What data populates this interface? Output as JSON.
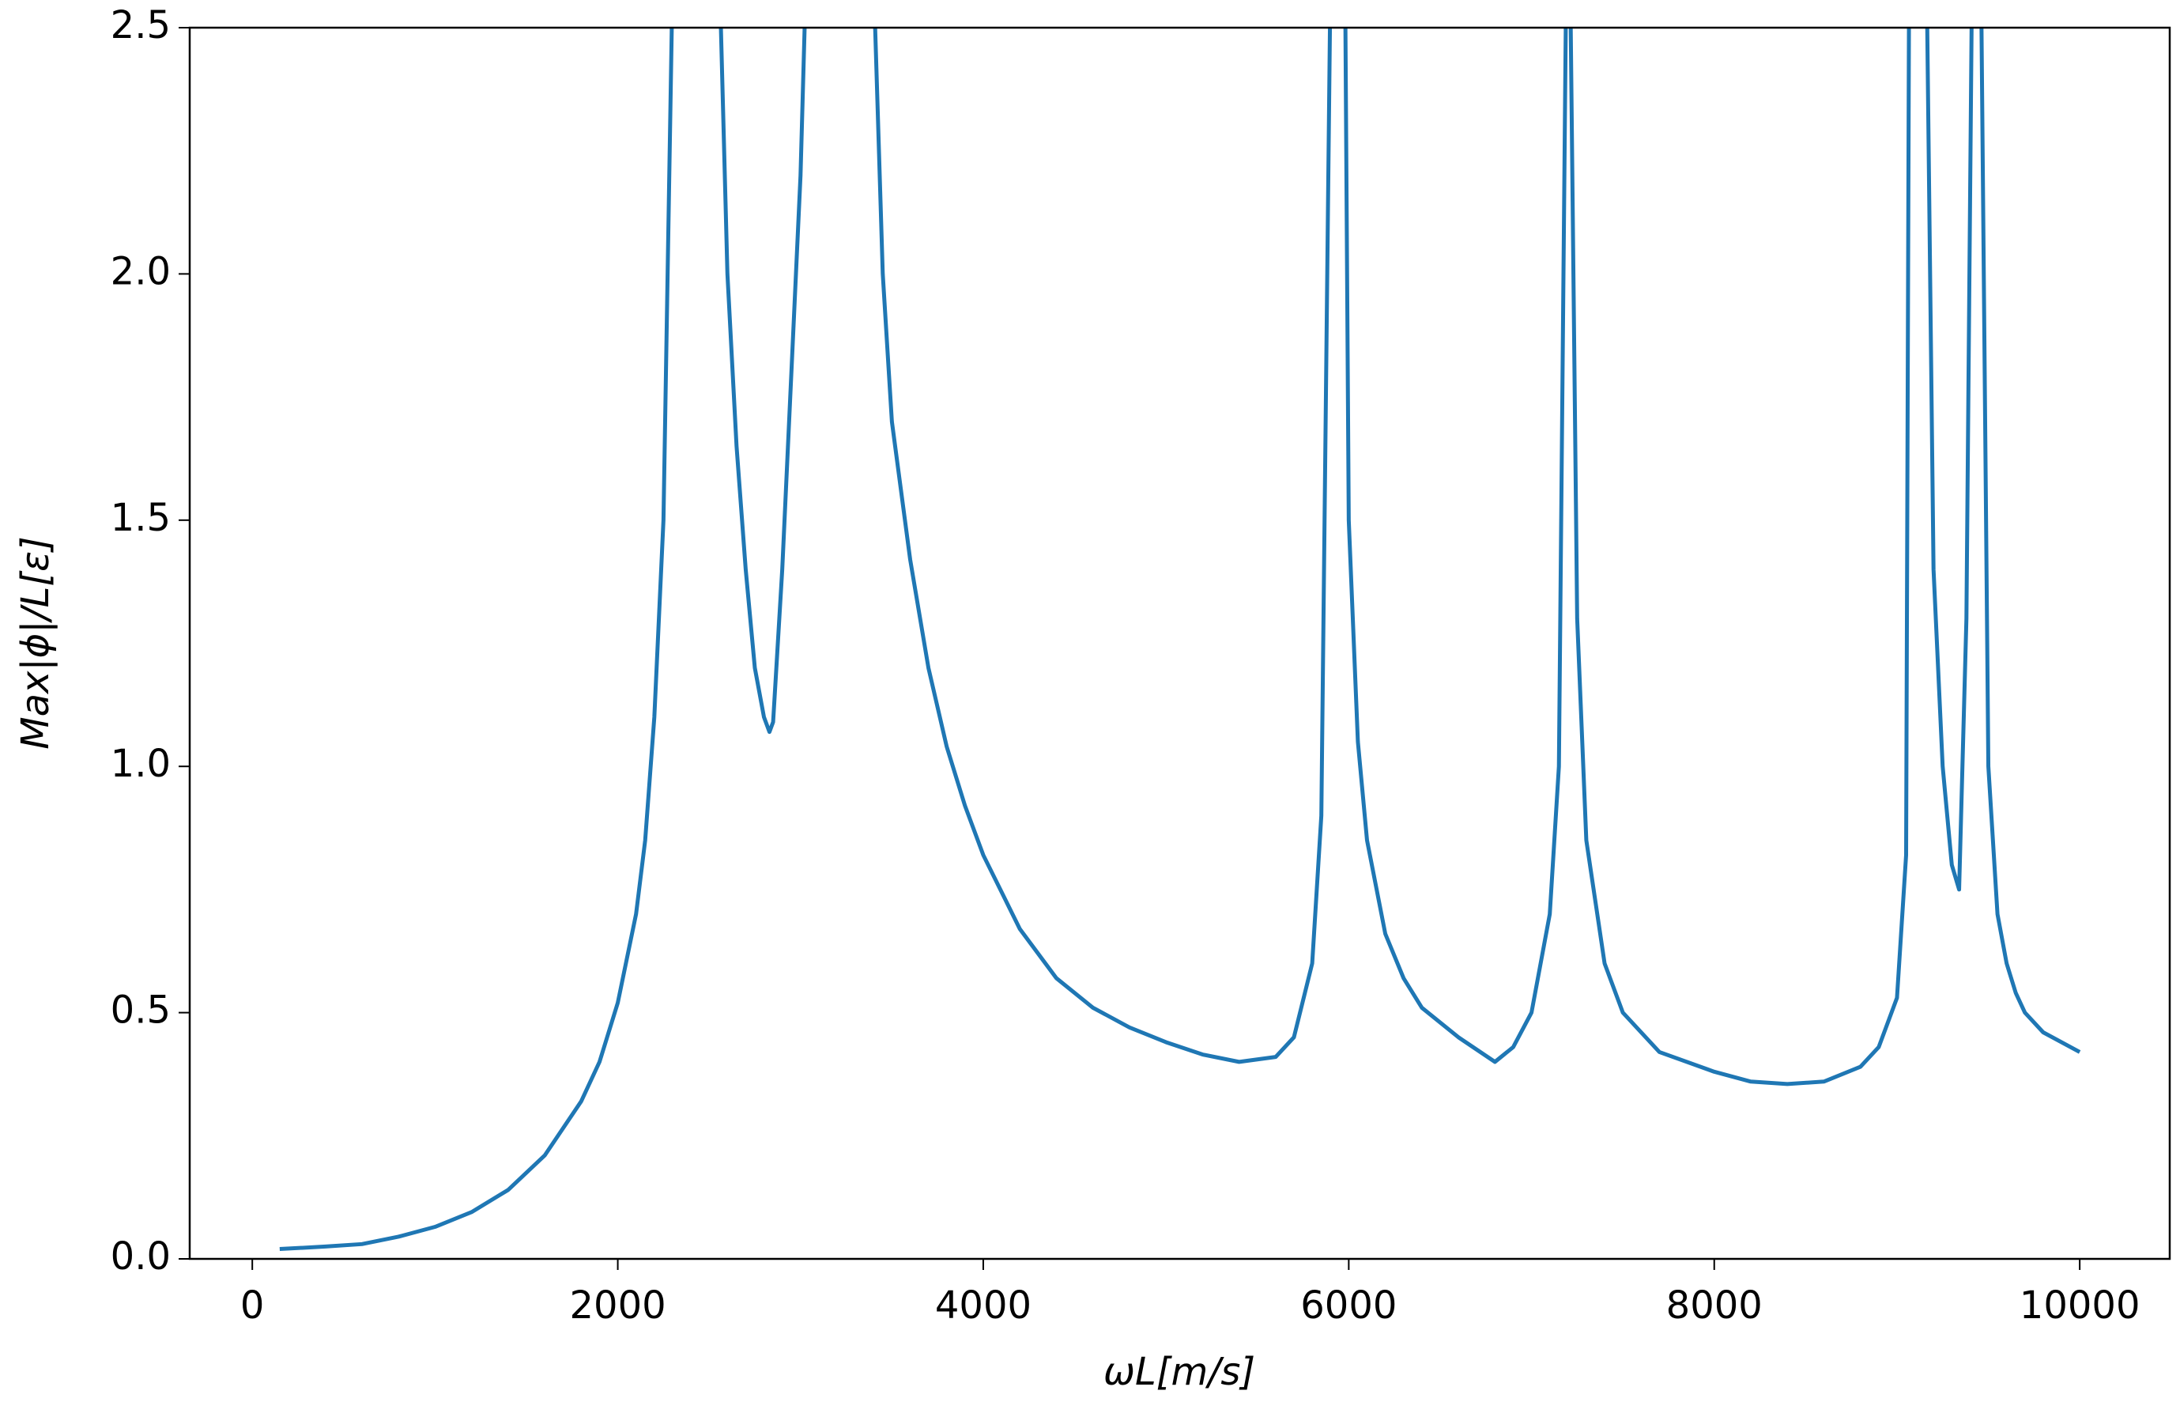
{
  "chart_data": {
    "type": "line",
    "x_label": "ωL[m/s]",
    "y_label": "Max|ϕ|/L[ε]",
    "x": [
      150,
      400,
      600,
      800,
      1000,
      1200,
      1400,
      1600,
      1800,
      1900,
      2000,
      2100,
      2150,
      2200,
      2250,
      2300,
      2350,
      2500,
      2550,
      2600,
      2650,
      2700,
      2750,
      2800,
      2830,
      2850,
      2900,
      2950,
      3000,
      3030,
      3100,
      3350,
      3400,
      3450,
      3500,
      3600,
      3700,
      3800,
      3900,
      4000,
      4200,
      4400,
      4600,
      4800,
      5000,
      5200,
      5400,
      5600,
      5700,
      5800,
      5850,
      5900,
      5950,
      5980,
      6000,
      6050,
      6100,
      6200,
      6300,
      6400,
      6600,
      6800,
      6900,
      7000,
      7100,
      7150,
      7200,
      7250,
      7300,
      7400,
      7500,
      7700,
      8000,
      8200,
      8400,
      8600,
      8800,
      8900,
      9000,
      9050,
      9070,
      9150,
      9200,
      9250,
      9300,
      9340,
      9380,
      9420,
      9450,
      9500,
      9550,
      9600,
      9650,
      9700,
      9800,
      10000
    ],
    "series": [
      {
        "color": "#1f77b4",
        "values": [
          0.02,
          0.025,
          0.03,
          0.045,
          0.065,
          0.095,
          0.14,
          0.21,
          0.32,
          0.4,
          0.52,
          0.7,
          0.85,
          1.1,
          1.5,
          2.6,
          4,
          4,
          2.7,
          2.0,
          1.65,
          1.4,
          1.2,
          1.1,
          1.07,
          1.09,
          1.4,
          1.8,
          2.2,
          2.6,
          4,
          4,
          2.6,
          2.0,
          1.7,
          1.42,
          1.2,
          1.04,
          0.92,
          0.82,
          0.67,
          0.57,
          0.51,
          0.47,
          0.44,
          0.415,
          0.4,
          0.41,
          0.45,
          0.6,
          0.9,
          2.6,
          4,
          2.6,
          1.5,
          1.05,
          0.85,
          0.66,
          0.57,
          0.51,
          0.45,
          0.4,
          0.43,
          0.5,
          0.7,
          1.0,
          3,
          1.3,
          0.85,
          0.6,
          0.5,
          0.42,
          0.38,
          0.36,
          0.355,
          0.36,
          0.39,
          0.43,
          0.53,
          0.82,
          3,
          3,
          1.4,
          1.0,
          0.8,
          0.75,
          1.3,
          3,
          3,
          1.0,
          0.7,
          0.6,
          0.54,
          0.5,
          0.46,
          0.42
        ]
      }
    ],
    "xlim": [
      -342.5,
      10492.5
    ],
    "xticks": [
      0,
      2000,
      4000,
      6000,
      8000,
      10000
    ],
    "ylim": [
      0,
      2.5
    ],
    "yticks": [
      {
        "value": 0,
        "label": "0.0"
      },
      {
        "value": 0.5,
        "label": "0.5"
      },
      {
        "value": 1,
        "label": "1.0"
      },
      {
        "value": 1.5,
        "label": "1.5"
      },
      {
        "value": 2,
        "label": "2.0"
      },
      {
        "value": 2.5,
        "label": "2.5"
      }
    ],
    "grid": false
  }
}
